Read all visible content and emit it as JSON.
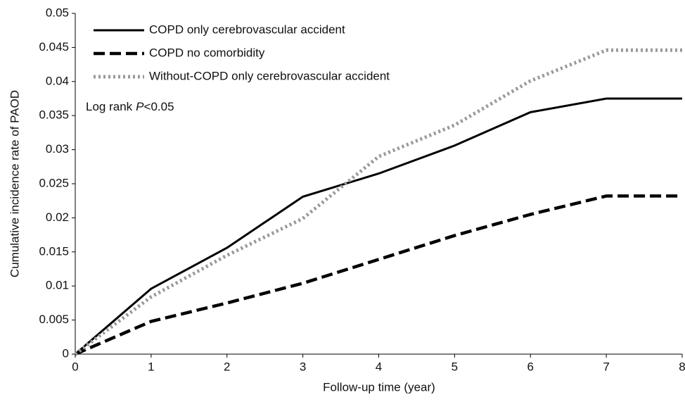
{
  "chart_data": {
    "type": "line",
    "x_label": "Follow-up time (year)",
    "y_label": "Cumulative incidence rate of PAOD",
    "x": [
      0,
      1,
      2,
      3,
      4,
      5,
      6,
      7,
      8
    ],
    "series": [
      {
        "name": "COPD only cerebrovascular accident",
        "color": "#000000",
        "dash": "solid",
        "values": [
          0,
          0.0096,
          0.0156,
          0.0231,
          0.0265,
          0.0306,
          0.0355,
          0.0375,
          0.0375
        ]
      },
      {
        "name": "COPD no comorbidity",
        "color": "#000000",
        "dash": "dashed",
        "values": [
          0,
          0.0048,
          0.0075,
          0.0104,
          0.0139,
          0.0174,
          0.0205,
          0.0232,
          0.0232
        ]
      },
      {
        "name": "Without-COPD only cerebrovascular accident",
        "color": "#999999",
        "dash": "dotted",
        "values": [
          0,
          0.0084,
          0.0145,
          0.0199,
          0.029,
          0.0336,
          0.0401,
          0.0446,
          0.0446
        ]
      }
    ],
    "annotation": {
      "prefix": "Log rank",
      "italic": "P",
      "suffix": "<0.05"
    },
    "xlim": [
      0,
      8
    ],
    "xticks": [
      0,
      1,
      2,
      3,
      4,
      5,
      6,
      7,
      8
    ],
    "ylim": [
      0,
      0.05
    ],
    "yticks": [
      0,
      0.005,
      0.01,
      0.015,
      0.02,
      0.025,
      0.03,
      0.035,
      0.04,
      0.045,
      0.05
    ],
    "grid": false,
    "legend": "upper-left"
  }
}
